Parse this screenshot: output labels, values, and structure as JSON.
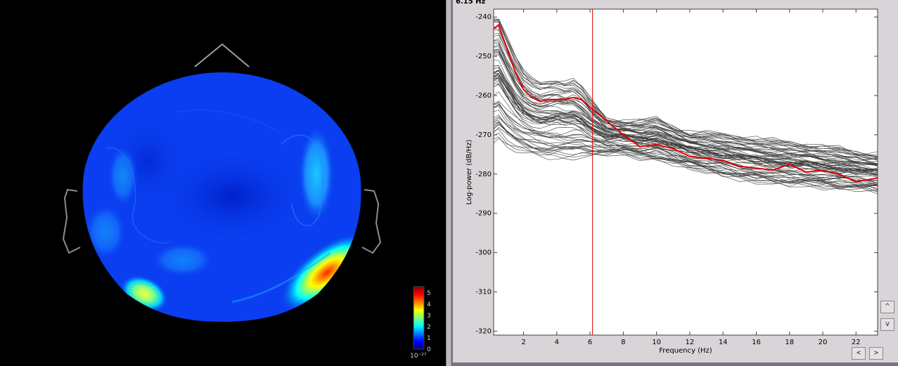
{
  "readout": {
    "frequency": "6.15 Hz"
  },
  "topomap": {
    "colorbar": {
      "ticks": [
        "5",
        "4",
        "3",
        "2",
        "1",
        "0"
      ],
      "exponent": "10⁻²⁷",
      "colors": [
        "#00007f",
        "#0000ff",
        "#007fff",
        "#00ffff",
        "#7fff7f",
        "#ffff00",
        "#ff7f00",
        "#ff0000",
        "#7f0000"
      ]
    },
    "map_color": "#0a3ef0"
  },
  "chart_data": {
    "type": "line",
    "title": "",
    "xlabel": "Frequency (Hz)",
    "ylabel": "Log-power    (dB/Hz)",
    "xlim": [
      0.2,
      23.3
    ],
    "ylim": [
      -321,
      -238
    ],
    "x_ticks": [
      2,
      4,
      6,
      8,
      10,
      12,
      14,
      16,
      18,
      20,
      22
    ],
    "y_ticks": [
      -240,
      -250,
      -260,
      -270,
      -280,
      -290,
      -300,
      -310,
      -320
    ],
    "x_tick_labels": [
      "2",
      "4",
      "6",
      "8",
      "10",
      "12",
      "14",
      "16",
      "18",
      "20",
      "22"
    ],
    "y_tick_labels": [
      "-240",
      "-250",
      "-260",
      "-270",
      "-280",
      "-290",
      "-300",
      "-310",
      "-320"
    ],
    "cursor_x": 6.15,
    "colors": {
      "channels": "#3a3a3a",
      "mean": "#e00000",
      "cursor": "#e00000"
    },
    "x": [
      0.2,
      0.5,
      1,
      1.5,
      2,
      2.5,
      3,
      3.5,
      4,
      4.5,
      5,
      5.5,
      6,
      7,
      8,
      9,
      10,
      11,
      12,
      13,
      14,
      15,
      16,
      17,
      18,
      19,
      20,
      21,
      22,
      23.3
    ],
    "series": [
      {
        "role": "mean",
        "values": [
          -243,
          -242,
          -248,
          -254,
          -258.5,
          -260.5,
          -261.5,
          -261,
          -261,
          -261,
          -260.5,
          -261,
          -263,
          -266.5,
          -270,
          -273,
          -272.5,
          -273.5,
          -275.5,
          -276,
          -276.5,
          -278,
          -278.5,
          -279,
          -277.5,
          -279.5,
          -279,
          -280,
          -282,
          -281
        ]
      },
      {
        "role": "envelope-top",
        "values": [
          -240,
          -240,
          -245,
          -250,
          -254,
          -256,
          -257,
          -256.5,
          -256,
          -256.5,
          -256,
          -258,
          -261,
          -266,
          -266.5,
          -266.5,
          -266,
          -268,
          -269.5,
          -269.5,
          -270,
          -270.5,
          -271,
          -271.5,
          -272,
          -272.5,
          -273,
          -273.5,
          -274.5,
          -275
        ]
      },
      {
        "role": "envelope-bottom",
        "values": [
          -272,
          -271,
          -273,
          -274,
          -274.5,
          -275,
          -275.5,
          -276,
          -276,
          -276,
          -276,
          -275.5,
          -275.5,
          -275,
          -275,
          -276,
          -276.5,
          -277.5,
          -278.5,
          -279.5,
          -280.5,
          -281.5,
          -282,
          -282.5,
          -283,
          -283,
          -283.5,
          -284,
          -284,
          -284.5
        ]
      }
    ]
  }
}
